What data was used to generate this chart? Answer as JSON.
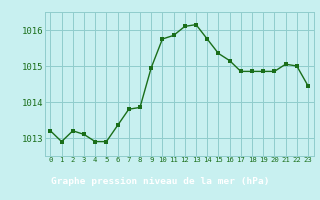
{
  "x": [
    0,
    1,
    2,
    3,
    4,
    5,
    6,
    7,
    8,
    9,
    10,
    11,
    12,
    13,
    14,
    15,
    16,
    17,
    18,
    19,
    20,
    21,
    22,
    23
  ],
  "y": [
    1013.2,
    1012.9,
    1013.2,
    1013.1,
    1012.9,
    1012.9,
    1013.35,
    1013.8,
    1013.85,
    1014.95,
    1015.75,
    1015.85,
    1016.1,
    1016.15,
    1015.75,
    1015.35,
    1015.15,
    1014.85,
    1014.85,
    1014.85,
    1014.85,
    1015.05,
    1015.0,
    1014.45
  ],
  "line_color": "#1a6e1a",
  "marker_color": "#1a6e1a",
  "bg_color": "#c8f0f0",
  "grid_color": "#90cccc",
  "axis_color": "#555555",
  "tick_color": "#1a6e1a",
  "title": "Graphe pression niveau de la mer (hPa)",
  "title_fg": "#ffffff",
  "title_bg": "#2d7a2d",
  "ylim": [
    1012.5,
    1016.5
  ],
  "yticks": [
    1013,
    1014,
    1015,
    1016
  ],
  "xtick_labels": [
    "0",
    "1",
    "2",
    "3",
    "4",
    "5",
    "6",
    "7",
    "8",
    "9",
    "10",
    "11",
    "12",
    "13",
    "14",
    "15",
    "16",
    "17",
    "18",
    "19",
    "20",
    "21",
    "22",
    "23"
  ]
}
